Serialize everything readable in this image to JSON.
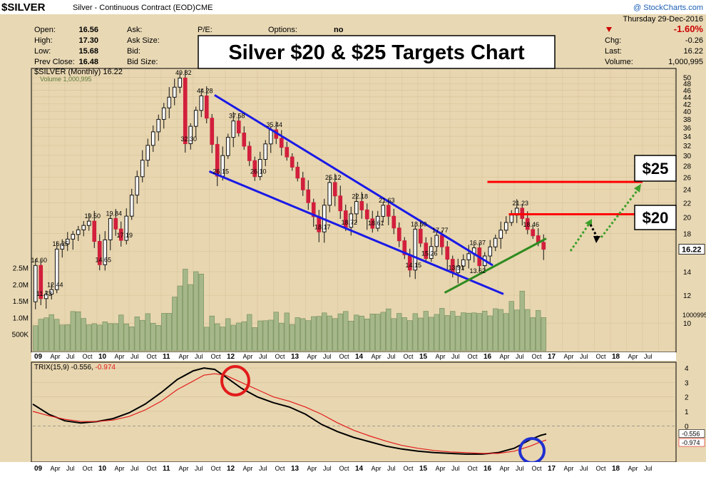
{
  "header": {
    "symbol": "$SILVER",
    "description": "Silver - Continuous Contract (EOD)",
    "exchange": "CME",
    "date": "Thursday  29-Dec-2016",
    "change_pct": "-1.60%",
    "chg_label": "Chg:",
    "chg_value": "-0.26",
    "last_label": "Last:",
    "last_value": "16.22",
    "volume_label": "Volume:",
    "volume_value": "1,000,995",
    "watermark": "@ StockCharts.com",
    "quote": [
      {
        "label": "Open:",
        "value": "16.56"
      },
      {
        "label": "High:",
        "value": "17.30"
      },
      {
        "label": "Low:",
        "value": "15.68"
      },
      {
        "label": "Prev Close:",
        "value": "16.48"
      }
    ],
    "col2": [
      "Ask:",
      "Ask Size:",
      "Bid:",
      "Bid Size:"
    ],
    "pe_label": "P/E:",
    "options_label": "Options:",
    "options_value": "no"
  },
  "headline": "Silver $20 & $25 Targets Chart",
  "legend": {
    "price": "$SILVER (Monthly) 16.22",
    "volume": "Volume 1,000,995"
  },
  "target_labels": [
    "$25",
    "$20"
  ],
  "chart_data": [
    {
      "type": "candlestick",
      "title": "$SILVER (Monthly) 16.22",
      "ylim": [
        8.5,
        52
      ],
      "scale": "log",
      "y_ticks": [
        10,
        12,
        14,
        16,
        18,
        20,
        22,
        24,
        26,
        28,
        30,
        32,
        34,
        36,
        38,
        40,
        42,
        44,
        46,
        48,
        50
      ],
      "last_price_label": "16.22",
      "volume_ticks": [
        "2.5M",
        "2.0M",
        "1.5M",
        "1.0M",
        "500K"
      ],
      "volume_right_label": "1000995",
      "x_tick_labels": [
        "09",
        "Apr",
        "Jul",
        "Oct",
        "10",
        "Apr",
        "Jul",
        "Oct",
        "11",
        "Apr",
        "Jul",
        "Oct",
        "12",
        "Apr",
        "Jul",
        "Oct",
        "13",
        "Apr",
        "Jul",
        "Oct",
        "14",
        "Apr",
        "Jul",
        "Oct",
        "15",
        "Apr",
        "Jul",
        "Oct",
        "16",
        "Apr",
        "Jul",
        "Oct",
        "17",
        "Apr",
        "Jul",
        "Oct",
        "18",
        "Apr",
        "Jul"
      ],
      "annotations": [
        {
          "text": "14.60",
          "x": 2009.083,
          "y": 14.6
        },
        {
          "text": "16.25",
          "x": 2009.417,
          "y": 16.25
        },
        {
          "text": "11.73",
          "x": 2009.167,
          "y": 11.73
        },
        {
          "text": "12.44",
          "x": 2009.333,
          "y": 12.44
        },
        {
          "text": "19.50",
          "x": 2009.917,
          "y": 19.5
        },
        {
          "text": "14.65",
          "x": 2010.083,
          "y": 14.65
        },
        {
          "text": "19.84",
          "x": 2010.25,
          "y": 19.84
        },
        {
          "text": "17.19",
          "x": 2010.417,
          "y": 17.19
        },
        {
          "text": "49.82",
          "x": 2011.333,
          "y": 49.82
        },
        {
          "text": "32.30",
          "x": 2011.417,
          "y": 32.3
        },
        {
          "text": "44.28",
          "x": 2011.667,
          "y": 44.28
        },
        {
          "text": "26.15",
          "x": 2011.917,
          "y": 26.15
        },
        {
          "text": "37.58",
          "x": 2012.167,
          "y": 37.58
        },
        {
          "text": "26.10",
          "x": 2012.5,
          "y": 26.1
        },
        {
          "text": "35.44",
          "x": 2012.75,
          "y": 35.44
        },
        {
          "text": "25.12",
          "x": 2013.667,
          "y": 25.12
        },
        {
          "text": "18.17",
          "x": 2013.5,
          "y": 18.17
        },
        {
          "text": "22.18",
          "x": 2014.083,
          "y": 22.18
        },
        {
          "text": "18.72",
          "x": 2013.917,
          "y": 18.72
        },
        {
          "text": "21.63",
          "x": 2014.5,
          "y": 21.63
        },
        {
          "text": "18.61",
          "x": 2014.333,
          "y": 18.61
        },
        {
          "text": "18.50",
          "x": 2015.0,
          "y": 18.5
        },
        {
          "text": "17.77",
          "x": 2015.333,
          "y": 17.77
        },
        {
          "text": "15.26",
          "x": 2015.167,
          "y": 15.26
        },
        {
          "text": "14.15",
          "x": 2014.917,
          "y": 14.15
        },
        {
          "text": "16.37",
          "x": 2015.917,
          "y": 16.37
        },
        {
          "text": "13.91",
          "x": 2015.583,
          "y": 13.91
        },
        {
          "text": "13.62",
          "x": 2015.917,
          "y": 13.62
        },
        {
          "text": "21.23",
          "x": 2016.583,
          "y": 21.23
        },
        {
          "text": "18.46",
          "x": 2016.75,
          "y": 18.46
        }
      ],
      "trendlines": [
        {
          "name": "upper-channel",
          "color": "#1a1ae6",
          "points": [
            [
              2011.833,
              44.5
            ],
            [
              2016.167,
              14.6
            ]
          ]
        },
        {
          "name": "lower-channel",
          "color": "#1a1ae6",
          "points": [
            [
              2011.75,
              27.0
            ],
            [
              2016.333,
              12.1
            ]
          ]
        },
        {
          "name": "support",
          "color": "#2e8b1f",
          "points": [
            [
              2015.417,
              12.2
            ],
            [
              2017.0,
              17.4
            ]
          ]
        },
        {
          "name": "target-25",
          "color": "#ff0000",
          "points": [
            [
              2016.083,
              25.2
            ],
            [
              2018.5,
              25.2
            ]
          ]
        },
        {
          "name": "target-20",
          "color": "#ff0000",
          "points": [
            [
              2016.417,
              20.4
            ],
            [
              2018.5,
              20.4
            ]
          ]
        }
      ]
    },
    {
      "type": "line",
      "title": "TRIX(15,9) -0.556, -0.974",
      "ylim": [
        -2.4,
        4.3
      ],
      "y_ticks": [
        4,
        3,
        2,
        1,
        0
      ],
      "series": [
        {
          "name": "TRIX(15,9)",
          "last": "-0.556",
          "color": "#000000",
          "values": [
            [
              2009.0,
              1.5
            ],
            [
              2009.25,
              0.8
            ],
            [
              2009.5,
              0.35
            ],
            [
              2009.75,
              0.2
            ],
            [
              2010.0,
              0.3
            ],
            [
              2010.25,
              0.5
            ],
            [
              2010.5,
              0.9
            ],
            [
              2010.75,
              1.5
            ],
            [
              2011.0,
              2.3
            ],
            [
              2011.25,
              3.2
            ],
            [
              2011.5,
              3.8
            ],
            [
              2011.667,
              4.0
            ],
            [
              2011.833,
              3.9
            ],
            [
              2012.0,
              3.4
            ],
            [
              2012.25,
              2.6
            ],
            [
              2012.5,
              2.0
            ],
            [
              2012.75,
              1.6
            ],
            [
              2013.0,
              1.3
            ],
            [
              2013.25,
              0.8
            ],
            [
              2013.5,
              0.1
            ],
            [
              2013.75,
              -0.4
            ],
            [
              2014.0,
              -0.8
            ],
            [
              2014.25,
              -1.1
            ],
            [
              2014.5,
              -1.4
            ],
            [
              2014.75,
              -1.6
            ],
            [
              2015.0,
              -1.75
            ],
            [
              2015.25,
              -1.85
            ],
            [
              2015.5,
              -1.9
            ],
            [
              2015.75,
              -1.95
            ],
            [
              2016.0,
              -1.95
            ],
            [
              2016.25,
              -1.85
            ],
            [
              2016.5,
              -1.55
            ],
            [
              2016.75,
              -0.95
            ],
            [
              2016.917,
              -0.65
            ],
            [
              2017.0,
              -0.556
            ]
          ]
        },
        {
          "name": "signal",
          "last": "-0.974",
          "color": "#e21b1b",
          "values": [
            [
              2009.0,
              1.0
            ],
            [
              2009.25,
              0.7
            ],
            [
              2009.5,
              0.45
            ],
            [
              2009.75,
              0.3
            ],
            [
              2010.0,
              0.3
            ],
            [
              2010.25,
              0.4
            ],
            [
              2010.5,
              0.65
            ],
            [
              2010.75,
              1.1
            ],
            [
              2011.0,
              1.7
            ],
            [
              2011.25,
              2.5
            ],
            [
              2011.5,
              3.1
            ],
            [
              2011.667,
              3.5
            ],
            [
              2011.833,
              3.6
            ],
            [
              2012.0,
              3.5
            ],
            [
              2012.25,
              3.0
            ],
            [
              2012.5,
              2.5
            ],
            [
              2012.75,
              2.0
            ],
            [
              2013.0,
              1.7
            ],
            [
              2013.25,
              1.3
            ],
            [
              2013.5,
              0.8
            ],
            [
              2013.75,
              0.2
            ],
            [
              2014.0,
              -0.3
            ],
            [
              2014.25,
              -0.7
            ],
            [
              2014.5,
              -1.05
            ],
            [
              2014.75,
              -1.35
            ],
            [
              2015.0,
              -1.55
            ],
            [
              2015.25,
              -1.7
            ],
            [
              2015.5,
              -1.8
            ],
            [
              2015.75,
              -1.85
            ],
            [
              2016.0,
              -1.9
            ],
            [
              2016.25,
              -1.9
            ],
            [
              2016.5,
              -1.75
            ],
            [
              2016.75,
              -1.4
            ],
            [
              2016.917,
              -1.1
            ],
            [
              2017.0,
              -0.974
            ]
          ]
        }
      ]
    }
  ]
}
